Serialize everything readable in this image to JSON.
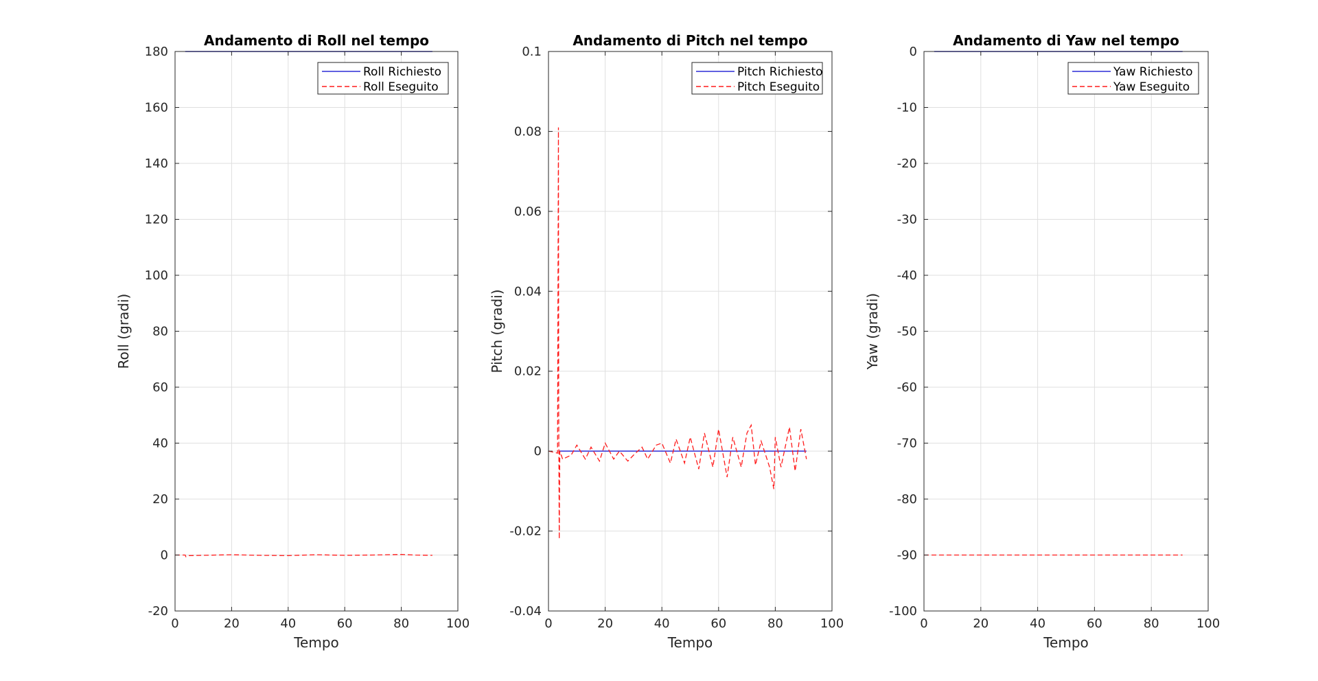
{
  "figure": {
    "background": "#ffffff",
    "axis_color": "#262626",
    "grid_color": "#dfdfdf",
    "requested_color": "#2b2bd6",
    "executed_color": "#ff1a1a"
  },
  "chart_data": [
    {
      "type": "line",
      "title": "Andamento di Roll nel tempo",
      "xlabel": "Tempo",
      "ylabel": "Roll (gradi)",
      "xlim": [
        0,
        100
      ],
      "ylim": [
        -20,
        180
      ],
      "xticks": [
        0,
        20,
        40,
        60,
        80,
        100
      ],
      "yticks": [
        -20,
        0,
        20,
        40,
        60,
        80,
        100,
        120,
        140,
        160,
        180
      ],
      "xtick_labels": [
        "0",
        "20",
        "40",
        "60",
        "80",
        "100"
      ],
      "ytick_labels": [
        "-20",
        "0",
        "20",
        "40",
        "60",
        "80",
        "100",
        "120",
        "140",
        "160",
        "180"
      ],
      "grid": true,
      "legend_position": "top-right",
      "legend_entries": [
        "Roll Richiesto",
        "Roll Eseguito"
      ],
      "series": [
        {
          "name": "Roll Richiesto",
          "style": "solid",
          "color": "#2b2bd6",
          "x": [
            3.6,
            91
          ],
          "y": [
            180,
            180
          ]
        },
        {
          "name": "Roll Eseguito",
          "style": "dashed",
          "color": "#ff1a1a",
          "x": [
            0,
            3.6,
            3.8,
            5,
            10,
            20,
            30,
            40,
            50,
            60,
            70,
            80,
            85,
            91
          ],
          "y": [
            0,
            0,
            -0.6,
            -0.2,
            -0.1,
            0.1,
            -0.1,
            -0.2,
            0.1,
            -0.1,
            0,
            0.2,
            0,
            -0.1
          ]
        }
      ]
    },
    {
      "type": "line",
      "title": "Andamento di Pitch nel tempo",
      "xlabel": "Tempo",
      "ylabel": "Pitch (gradi)",
      "xlim": [
        0,
        100
      ],
      "ylim": [
        -0.04,
        0.1
      ],
      "xticks": [
        0,
        20,
        40,
        60,
        80,
        100
      ],
      "yticks": [
        -0.04,
        -0.02,
        0,
        0.02,
        0.04,
        0.06,
        0.08,
        0.1
      ],
      "xtick_labels": [
        "0",
        "20",
        "40",
        "60",
        "80",
        "100"
      ],
      "ytick_labels": [
        "-0.04",
        "-0.02",
        "0",
        "0.02",
        "0.04",
        "0.06",
        "0.08",
        "0.1"
      ],
      "grid": true,
      "legend_position": "top-right",
      "legend_entries": [
        "Pitch Richiesto",
        "Pitch Eseguito"
      ],
      "series": [
        {
          "name": "Pitch Richiesto",
          "style": "solid",
          "color": "#2b2bd6",
          "x": [
            3.6,
            91
          ],
          "y": [
            0,
            0
          ]
        },
        {
          "name": "Pitch Eseguito",
          "style": "dashed",
          "color": "#ff1a1a",
          "x": [
            0,
            3.2,
            3.5,
            3.6,
            3.8,
            4.0,
            4.5,
            5,
            8,
            10,
            13,
            15,
            18,
            20,
            23,
            25,
            28,
            30,
            33,
            35,
            38,
            40,
            43,
            45,
            48,
            50,
            53,
            55,
            58,
            60,
            63,
            65,
            68,
            70,
            71.5,
            73,
            75,
            78,
            79.5,
            80,
            82,
            85,
            87,
            89,
            91
          ],
          "y": [
            0,
            -0.0005,
            0.081,
            0.01,
            -0.022,
            0.0,
            -0.001,
            -0.002,
            -0.001,
            0.0015,
            -0.002,
            0.001,
            -0.0025,
            0.002,
            -0.002,
            0.0,
            -0.0025,
            -0.001,
            0.001,
            -0.002,
            0.0015,
            0.002,
            -0.003,
            0.003,
            -0.003,
            0.0035,
            -0.0045,
            0.0045,
            -0.004,
            0.0055,
            -0.0065,
            0.0035,
            -0.004,
            0.0045,
            0.0065,
            -0.0035,
            0.0025,
            -0.004,
            -0.0095,
            0.0035,
            -0.004,
            0.006,
            -0.005,
            0.0055,
            -0.002
          ]
        }
      ]
    },
    {
      "type": "line",
      "title": "Andamento di Yaw nel tempo",
      "xlabel": "Tempo",
      "ylabel": "Yaw (gradi)",
      "xlim": [
        0,
        100
      ],
      "ylim": [
        -100,
        0
      ],
      "xticks": [
        0,
        20,
        40,
        60,
        80,
        100
      ],
      "yticks": [
        -100,
        -90,
        -80,
        -70,
        -60,
        -50,
        -40,
        -30,
        -20,
        -10,
        0
      ],
      "xtick_labels": [
        "0",
        "20",
        "40",
        "60",
        "80",
        "100"
      ],
      "ytick_labels": [
        "-100",
        "-90",
        "-80",
        "-70",
        "-60",
        "-50",
        "-40",
        "-30",
        "-20",
        "-10",
        "0"
      ],
      "grid": true,
      "legend_position": "top-right",
      "legend_entries": [
        "Yaw Richiesto",
        "Yaw Eseguito"
      ],
      "series": [
        {
          "name": "Yaw Richiesto",
          "style": "solid",
          "color": "#2b2bd6",
          "x": [
            3.6,
            91
          ],
          "y": [
            0,
            0
          ]
        },
        {
          "name": "Yaw Eseguito",
          "style": "dashed",
          "color": "#ff1a1a",
          "x": [
            0,
            91
          ],
          "y": [
            -90,
            -90
          ]
        }
      ]
    }
  ]
}
